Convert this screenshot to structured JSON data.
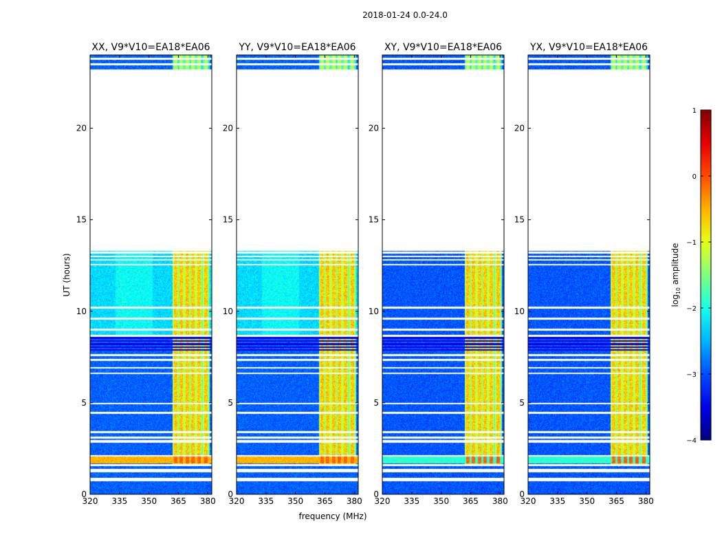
{
  "chart_data": {
    "type": "heatmap",
    "suptitle": "2018-01-24 0.0-24.0",
    "xlabel": "frequency (MHz)",
    "ylabel": "UT (hours)",
    "xlim": [
      320,
      382
    ],
    "ylim": [
      0,
      24
    ],
    "xticks": [
      320,
      335,
      350,
      365,
      380
    ],
    "yticks": [
      0,
      5,
      10,
      15,
      20
    ],
    "colorbar": {
      "label": "log10 amplitude",
      "label_base": "log",
      "label_sub": "10",
      "label_rest": " amplitude",
      "range": [
        -4,
        1
      ],
      "ticks": [
        -4,
        -3,
        -2,
        -1,
        0,
        1
      ],
      "tick_labels": [
        "−4",
        "−3",
        "−2",
        "−1",
        "0",
        "1"
      ],
      "colormap": "jet"
    },
    "panels": [
      {
        "title": "XX, V9*V10=EA18*EA06",
        "pol": "XX"
      },
      {
        "title": "YY, V9*V10=EA18*EA06",
        "pol": "YY"
      },
      {
        "title": "XY, V9*V10=EA18*EA06",
        "pol": "XY"
      },
      {
        "title": "YX, V9*V10=EA18*EA06",
        "pol": "YX"
      }
    ],
    "data_segments_hours": [
      [
        0,
        0.7
      ],
      [
        0.9,
        1.2
      ],
      [
        1.4,
        1.55
      ],
      [
        1.65,
        2.8
      ],
      [
        2.95,
        8.6
      ],
      [
        8.7,
        13.3
      ],
      [
        23.2,
        24.0
      ]
    ],
    "blank_hours": [
      0.75,
      1.3,
      1.6,
      2.1,
      2.9,
      3.1,
      3.4,
      4.45,
      4.95,
      6.6,
      6.9,
      7.35,
      7.6,
      9.0,
      9.6,
      10.2,
      12.55,
      12.8,
      13.0,
      13.2,
      23.5,
      23.8
    ],
    "levels": {
      "background_parallel_early": -2.9,
      "background_parallel_mid": -2.3,
      "background_cross": -2.95,
      "rfi_band_mhz": [
        362,
        381
      ],
      "rfi_channels_mhz": [
        363.5,
        366.5,
        369.5,
        372.5,
        375.5,
        379.0
      ],
      "rfi_strong": -0.6,
      "band_1_8h_parallel": -0.5,
      "band_1_8h_cross": -1.9,
      "dark_block_hours": [
        7.8,
        8.6
      ],
      "dark_block_level": -3.5
    }
  }
}
